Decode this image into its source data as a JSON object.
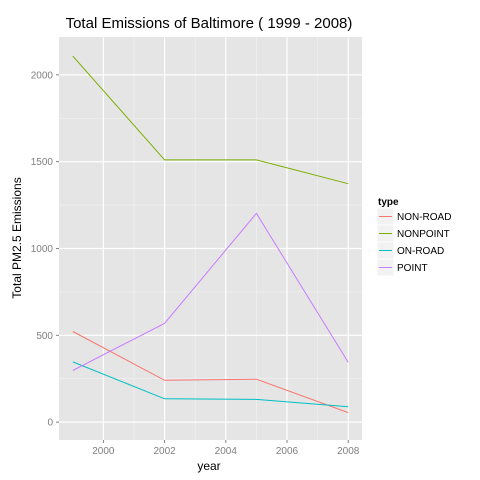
{
  "chart_data": {
    "type": "line",
    "title": "Total Emissions of Baltimore ( 1999 - 2008)",
    "xlabel": "year",
    "ylabel": "Total PM2.5 Emissions",
    "x": [
      1999,
      2002,
      2005,
      2008
    ],
    "xlim": [
      1998.55,
      2008.45
    ],
    "ylim": [
      -103,
      2218
    ],
    "xticks": [
      2000,
      2002,
      2004,
      2006,
      2008
    ],
    "yticks": [
      0,
      500,
      1000,
      1500,
      2000
    ],
    "grid": true,
    "background": "#e5e5e5",
    "legend": {
      "title": "type",
      "position": "right"
    },
    "series": [
      {
        "name": "NON-ROAD",
        "color": "#f8766d",
        "values": [
          522,
          241,
          247,
          55
        ]
      },
      {
        "name": "NONPOINT",
        "color": "#7cae00",
        "values": [
          2108,
          1510,
          1510,
          1373
        ]
      },
      {
        "name": "ON-ROAD",
        "color": "#00bfc4",
        "values": [
          347,
          134,
          131,
          88
        ]
      },
      {
        "name": "POINT",
        "color": "#c77cff",
        "values": [
          297,
          569,
          1202,
          345
        ]
      }
    ]
  }
}
